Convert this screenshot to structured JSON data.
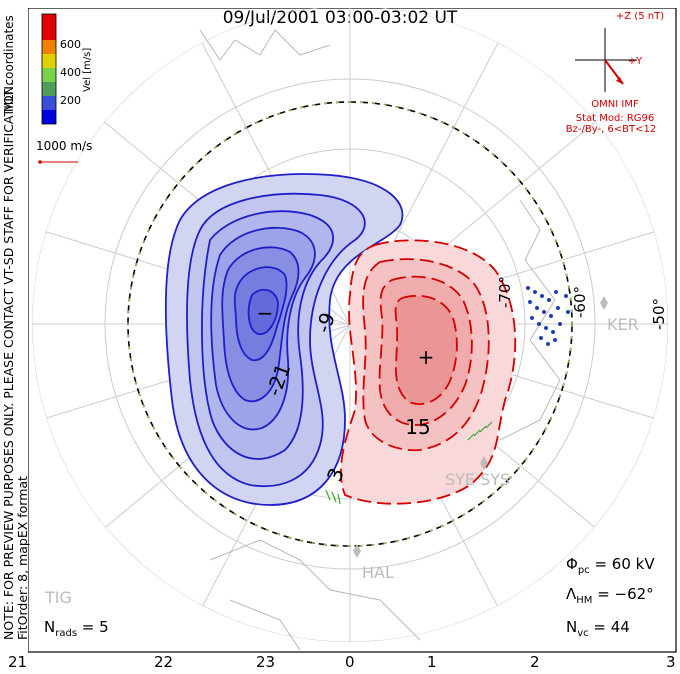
{
  "title": "09/Jul/2001 03:00-03:02 UT",
  "note_lines": [
    "NOTE: FOR PREVIEW PURPOSES ONLY. PLEASE CONTACT VT-SD STAFF FOR VERIFICATION.",
    "FitOrder: 8, mapEX format"
  ],
  "coordinates_label": "MLT coordinates",
  "colorbar": {
    "label": "Vel [m/s]",
    "ticks": [
      "600",
      "400",
      "200"
    ],
    "colors": [
      "#0000e0",
      "#3a4fd8",
      "#4f9c5a",
      "#7ad24a",
      "#e0d000",
      "#f08000",
      "#e00000"
    ]
  },
  "ref_vector": "1000 m/s",
  "imf": {
    "z_label": "+Z (5 nT)",
    "y_label": "+Y",
    "source": "OMNI IMF",
    "model": "Stat Mod: RG96",
    "condition": "Bz-/By-, 6<BT<12"
  },
  "latitude_labels": [
    "-70°",
    "-60°",
    "-50°"
  ],
  "stations": [
    "KER",
    "SYE SYS",
    "HAL",
    "TIG"
  ],
  "contour_labels": [
    "-21",
    "-9",
    "15",
    "3"
  ],
  "extrema_marks": [
    "−",
    "+"
  ],
  "stats": {
    "nrads_label": "N",
    "nrads_sub": "rads",
    "nrads_value": " = 5",
    "phi_label": "Φ",
    "phi_sub": "pc",
    "phi_value": " = 60 kV",
    "lambda_label": "Λ",
    "lambda_sub": "HM",
    "lambda_value": " = −62°",
    "nvc_label": "N",
    "nvc_sub": "vc",
    "nvc_value": " = 44"
  },
  "x_ticks": [
    "21",
    "22",
    "23",
    "0",
    "1",
    "2",
    "3"
  ]
}
